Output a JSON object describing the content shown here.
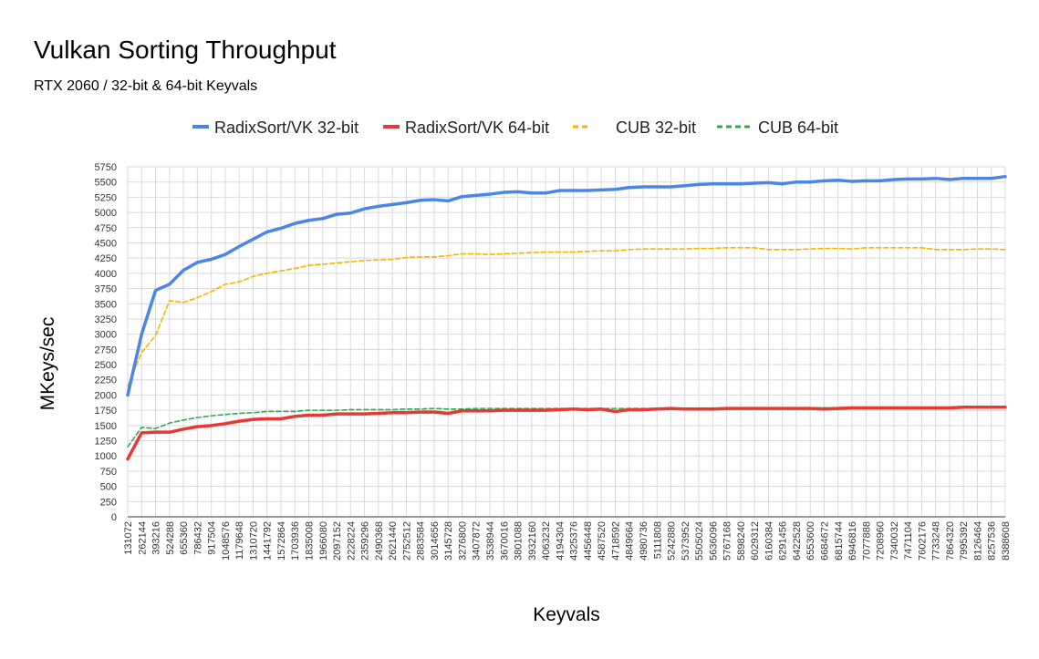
{
  "chart_data": {
    "type": "line",
    "title": "Vulkan Sorting Throughput",
    "subtitle": "RTX 2060 / 32-bit & 64-bit Keyvals",
    "xlabel": "Keyvals",
    "ylabel": "MKeys/sec",
    "ylim": [
      0,
      5750
    ],
    "ytick_step": 250,
    "grid": true,
    "legend_position": "top",
    "categories": [
      131072,
      262144,
      393216,
      524288,
      655360,
      786432,
      917504,
      1048576,
      1179648,
      1310720,
      1441792,
      1572864,
      1703936,
      1835008,
      1966080,
      2097152,
      2228224,
      2359296,
      2490368,
      2621440,
      2752512,
      2883584,
      3014656,
      3145728,
      3276800,
      3407872,
      3538944,
      3670016,
      3801088,
      3932160,
      4063232,
      4194304,
      4325376,
      4456448,
      4587520,
      4718592,
      4849664,
      4980736,
      5111808,
      5242880,
      5373952,
      5505024,
      5636096,
      5767168,
      5898240,
      6029312,
      6160384,
      6291456,
      6422528,
      6553600,
      6684672,
      6815744,
      6946816,
      7077888,
      7208960,
      7340032,
      7471104,
      7602176,
      7733248,
      7864320,
      7995392,
      8126464,
      8257536,
      8388608
    ],
    "series": [
      {
        "name": "RadixSort/VK 32-bit",
        "color": "#4a86e8",
        "style": "solid",
        "values": [
          2000,
          3000,
          3720,
          3820,
          4050,
          4180,
          4230,
          4310,
          4440,
          4560,
          4680,
          4740,
          4820,
          4870,
          4900,
          4970,
          4990,
          5060,
          5100,
          5130,
          5160,
          5200,
          5210,
          5190,
          5260,
          5280,
          5300,
          5330,
          5340,
          5320,
          5320,
          5360,
          5360,
          5360,
          5370,
          5380,
          5410,
          5420,
          5420,
          5420,
          5440,
          5460,
          5470,
          5470,
          5470,
          5480,
          5490,
          5470,
          5500,
          5500,
          5520,
          5530,
          5510,
          5520,
          5520,
          5540,
          5550,
          5550,
          5560,
          5540,
          5560,
          5560,
          5560,
          5590
        ]
      },
      {
        "name": "RadixSort/VK 64-bit",
        "color": "#e53935",
        "style": "solid",
        "values": [
          950,
          1380,
          1390,
          1390,
          1440,
          1480,
          1500,
          1530,
          1570,
          1600,
          1610,
          1610,
          1650,
          1670,
          1670,
          1690,
          1690,
          1690,
          1700,
          1710,
          1710,
          1720,
          1720,
          1700,
          1740,
          1740,
          1740,
          1750,
          1750,
          1750,
          1750,
          1760,
          1770,
          1760,
          1770,
          1730,
          1760,
          1760,
          1770,
          1780,
          1770,
          1770,
          1770,
          1780,
          1780,
          1780,
          1780,
          1780,
          1780,
          1780,
          1770,
          1780,
          1790,
          1790,
          1790,
          1790,
          1790,
          1790,
          1790,
          1790,
          1800,
          1800,
          1800,
          1800
        ]
      },
      {
        "name": "CUB 32-bit",
        "color": "#f6b400",
        "style": "dashed",
        "values": [
          2150,
          2700,
          2980,
          3550,
          3520,
          3600,
          3700,
          3820,
          3860,
          3950,
          4000,
          4040,
          4080,
          4130,
          4150,
          4170,
          4190,
          4210,
          4220,
          4230,
          4260,
          4270,
          4270,
          4290,
          4320,
          4320,
          4310,
          4320,
          4330,
          4340,
          4350,
          4350,
          4350,
          4360,
          4370,
          4370,
          4390,
          4400,
          4400,
          4400,
          4400,
          4410,
          4410,
          4420,
          4420,
          4420,
          4390,
          4390,
          4390,
          4400,
          4410,
          4410,
          4400,
          4420,
          4420,
          4420,
          4420,
          4420,
          4390,
          4390,
          4390,
          4400,
          4400,
          4390
        ]
      },
      {
        "name": "CUB 64-bit",
        "color": "#34a853",
        "style": "dashed",
        "values": [
          1150,
          1470,
          1450,
          1540,
          1590,
          1630,
          1660,
          1680,
          1700,
          1710,
          1730,
          1730,
          1730,
          1750,
          1750,
          1750,
          1760,
          1760,
          1760,
          1760,
          1770,
          1770,
          1780,
          1770,
          1770,
          1780,
          1780,
          1780,
          1780,
          1780,
          1780,
          1780,
          1780,
          1780,
          1780,
          1780,
          1780,
          1780,
          1780,
          1780,
          1780,
          1780,
          1780,
          1790,
          1790,
          1790,
          1790,
          1790,
          1790,
          1790,
          1790,
          1790,
          1790,
          1790,
          1790,
          1790,
          1790,
          1790,
          1790,
          1790,
          1800,
          1800,
          1800,
          1810
        ]
      }
    ]
  }
}
